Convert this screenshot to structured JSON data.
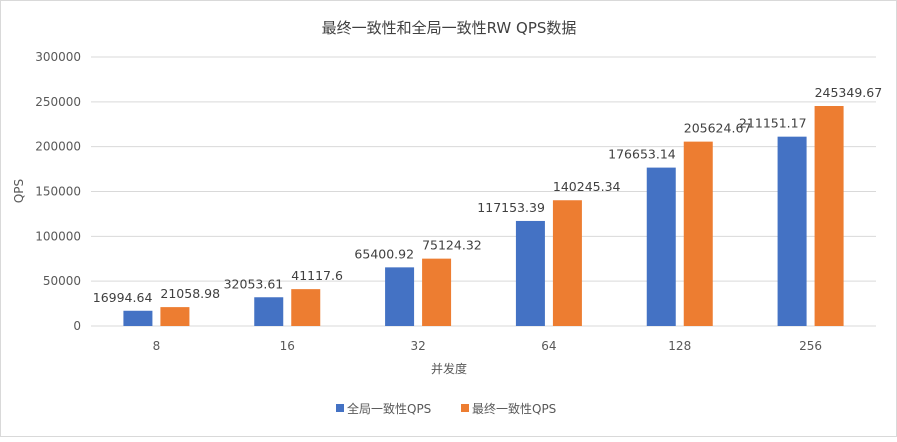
{
  "chart_data": {
    "type": "bar",
    "title": "最终一致性和全局一致性RW QPS数据",
    "xlabel": "并发度",
    "ylabel": "QPS",
    "categories": [
      "8",
      "16",
      "32",
      "64",
      "128",
      "256"
    ],
    "ylim": [
      0,
      300000
    ],
    "yticks": [
      0,
      50000,
      100000,
      150000,
      200000,
      250000,
      300000
    ],
    "ytick_labels": [
      "0",
      "50000",
      "100000",
      "150000",
      "200000",
      "250000",
      "300000"
    ],
    "grid": true,
    "legend_position": "bottom",
    "series": [
      {
        "name": "全局一致性QPS",
        "color": "#4472c4",
        "values": [
          16994.64,
          32053.61,
          65400.92,
          117153.39,
          176653.14,
          211151.17
        ],
        "labels": [
          "16994.64",
          "32053.61",
          "65400.92",
          "117153.39",
          "176653.14",
          "211151.17"
        ]
      },
      {
        "name": "最终一致性QPS",
        "color": "#ed7d31",
        "values": [
          21058.98,
          41117.6,
          75124.32,
          140245.34,
          205624.67,
          245349.67
        ],
        "labels": [
          "21058.98",
          "41117.6",
          "75124.32",
          "140245.34",
          "205624.67",
          "245349.67"
        ]
      }
    ]
  }
}
